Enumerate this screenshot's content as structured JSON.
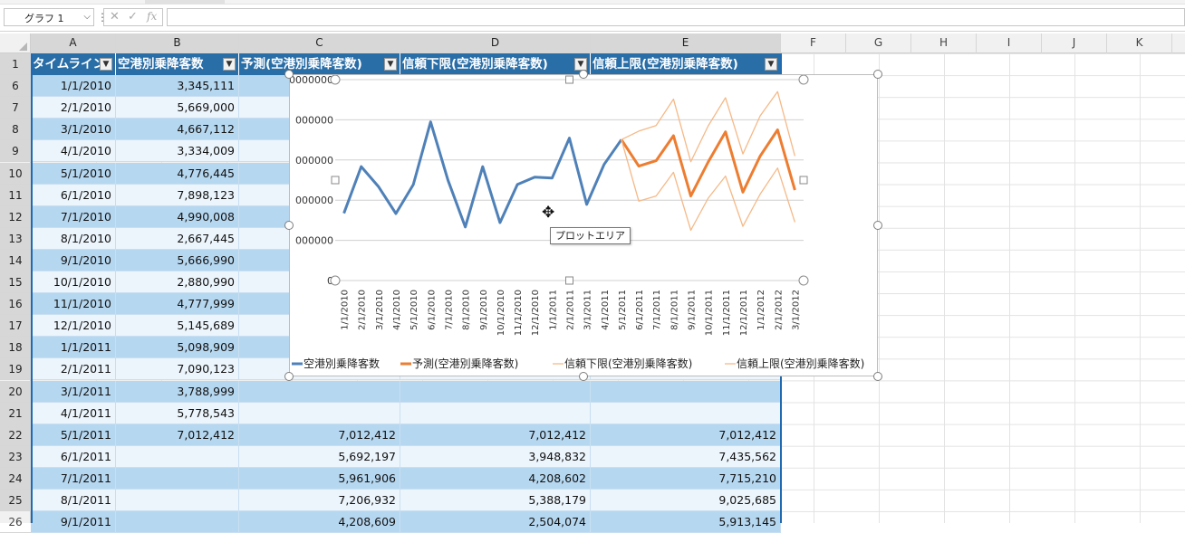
{
  "formula_bar": {
    "name_box": "グラフ 1",
    "cancel_glyph": "✕",
    "enter_glyph": "✓",
    "fx_glyph": "fx",
    "formula_value": ""
  },
  "columns": [
    "A",
    "B",
    "C",
    "D",
    "E",
    "F",
    "G",
    "H",
    "I",
    "J",
    "K"
  ],
  "row_numbers": [
    "1",
    "6",
    "7",
    "8",
    "9",
    "10",
    "11",
    "12",
    "13",
    "14",
    "15",
    "16",
    "17",
    "18",
    "19",
    "20",
    "21",
    "22",
    "23",
    "24",
    "25",
    "26"
  ],
  "table_headers": [
    "タイムライン",
    "空港別乗降客数",
    "予測(空港別乗降客数)",
    "信頼下限(空港別乗降客数)",
    "信頼上限(空港別乗降客数)"
  ],
  "table_rows": [
    [
      "1/1/2010",
      "3,345,111",
      "",
      "",
      ""
    ],
    [
      "2/1/2010",
      "5,669,000",
      "",
      "",
      ""
    ],
    [
      "3/1/2010",
      "4,667,112",
      "",
      "",
      ""
    ],
    [
      "4/1/2010",
      "3,334,009",
      "",
      "",
      ""
    ],
    [
      "5/1/2010",
      "4,776,445",
      "",
      "",
      ""
    ],
    [
      "6/1/2010",
      "7,898,123",
      "",
      "",
      ""
    ],
    [
      "7/1/2010",
      "4,990,008",
      "",
      "",
      ""
    ],
    [
      "8/1/2010",
      "2,667,445",
      "",
      "",
      ""
    ],
    [
      "9/1/2010",
      "5,666,990",
      "",
      "",
      ""
    ],
    [
      "10/1/2010",
      "2,880,990",
      "",
      "",
      ""
    ],
    [
      "11/1/2010",
      "4,777,999",
      "",
      "",
      ""
    ],
    [
      "12/1/2010",
      "5,145,689",
      "",
      "",
      ""
    ],
    [
      "1/1/2011",
      "5,098,909",
      "",
      "",
      ""
    ],
    [
      "2/1/2011",
      "7,090,123",
      "",
      "",
      ""
    ],
    [
      "3/1/2011",
      "3,788,999",
      "",
      "",
      ""
    ],
    [
      "4/1/2011",
      "5,778,543",
      "",
      "",
      ""
    ],
    [
      "5/1/2011",
      "7,012,412",
      "7,012,412",
      "7,012,412",
      "7,012,412"
    ],
    [
      "6/1/2011",
      "",
      "5,692,197",
      "3,948,832",
      "7,435,562"
    ],
    [
      "7/1/2011",
      "",
      "5,961,906",
      "4,208,602",
      "7,715,210"
    ],
    [
      "8/1/2011",
      "",
      "7,206,932",
      "5,388,179",
      "9,025,685"
    ],
    [
      "9/1/2011",
      "",
      "4,208,609",
      "2,504,074",
      "5,913,145"
    ]
  ],
  "chart": {
    "tooltip": "プロットエリア",
    "y_tick_labels": [
      "0000000",
      "000000",
      "000000",
      "000000",
      "000000",
      "0"
    ],
    "legend": [
      "空港別乗降客数",
      "予測(空港別乗降客数)",
      "信頼下限(空港別乗降客数)",
      "信頼上限(空港別乗降客数)"
    ],
    "colors": {
      "actual": "#4f81b8",
      "forecast": "#ed7d31",
      "bounds": "#f5b987"
    }
  },
  "chart_data": {
    "type": "line",
    "x": [
      "1/1/2010",
      "2/1/2010",
      "3/1/2010",
      "4/1/2010",
      "5/1/2010",
      "6/1/2010",
      "7/1/2010",
      "8/1/2010",
      "9/1/2010",
      "10/1/2010",
      "11/1/2010",
      "12/1/2010",
      "1/1/2011",
      "2/1/2011",
      "3/1/2011",
      "4/1/2011",
      "5/1/2011",
      "6/1/2011",
      "7/1/2011",
      "8/1/2011",
      "9/1/2011",
      "10/1/2011",
      "11/1/2011",
      "12/1/2011",
      "1/1/2012",
      "2/1/2012",
      "3/1/2012"
    ],
    "ylim": [
      0,
      10000000
    ],
    "series": [
      {
        "name": "空港別乗降客数",
        "values": [
          3345111,
          5669000,
          4667112,
          3334009,
          4776445,
          7898123,
          4990008,
          2667445,
          5666990,
          2880990,
          4777999,
          5145689,
          5098909,
          7090123,
          3788999,
          5778543,
          7012412,
          null,
          null,
          null,
          null,
          null,
          null,
          null,
          null,
          null,
          null
        ]
      },
      {
        "name": "予測(空港別乗降客数)",
        "values": [
          null,
          null,
          null,
          null,
          null,
          null,
          null,
          null,
          null,
          null,
          null,
          null,
          null,
          null,
          null,
          null,
          7012412,
          5692197,
          5961906,
          7206932,
          4208609,
          5900000,
          7400000,
          4400000,
          6200000,
          7500000,
          4500000
        ]
      },
      {
        "name": "信頼下限(空港別乗降客数)",
        "values": [
          null,
          null,
          null,
          null,
          null,
          null,
          null,
          null,
          null,
          null,
          null,
          null,
          null,
          null,
          null,
          null,
          7012412,
          3948832,
          4208602,
          5388179,
          2504074,
          4100000,
          5200000,
          2700000,
          4300000,
          5600000,
          2900000
        ]
      },
      {
        "name": "信頼上限(空港別乗降客数)",
        "values": [
          null,
          null,
          null,
          null,
          null,
          null,
          null,
          null,
          null,
          null,
          null,
          null,
          null,
          null,
          null,
          null,
          7012412,
          7435562,
          7715210,
          9025685,
          5913145,
          7700000,
          9100000,
          6300000,
          8200000,
          9400000,
          6200000
        ]
      }
    ]
  }
}
